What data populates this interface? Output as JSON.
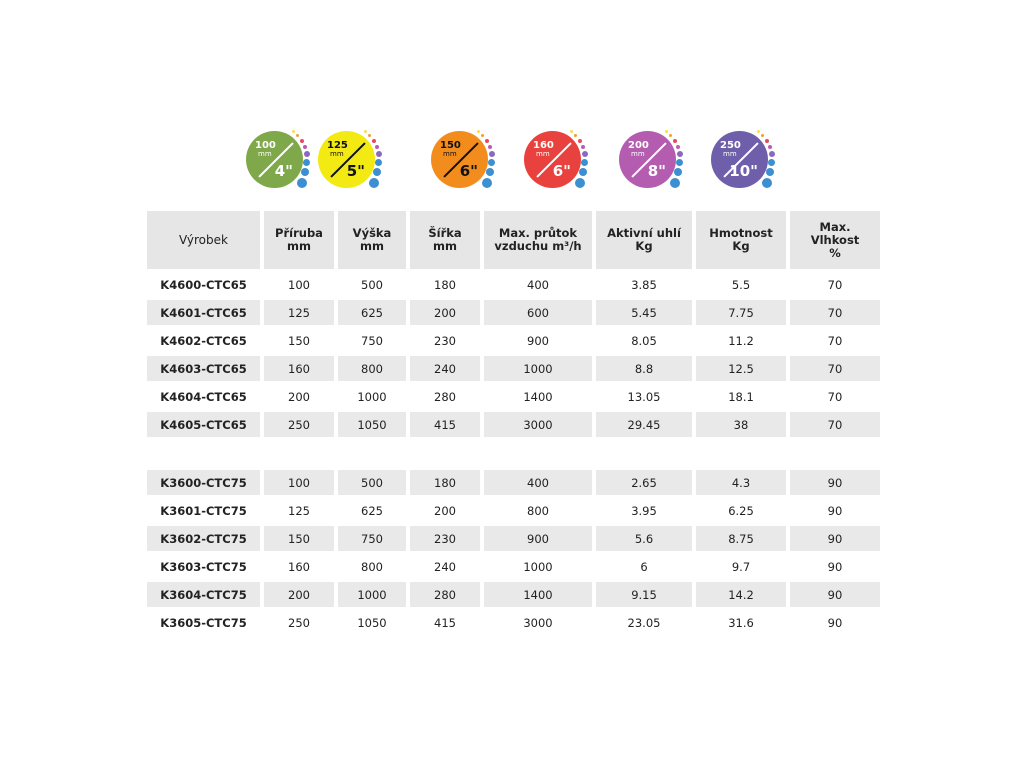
{
  "icons": [
    {
      "mm": "100",
      "unit": "mm",
      "inch": "4\"",
      "color": "#7fa84a",
      "text": "#ffffff"
    },
    {
      "mm": "125",
      "unit": "mm",
      "inch": "5\"",
      "color": "#f2ea12",
      "text": "#111111"
    },
    {
      "mm": "150",
      "unit": "mm",
      "inch": "6\"",
      "color": "#f28c1c",
      "text": "#111111"
    },
    {
      "mm": "160",
      "unit": "mm",
      "inch": "6\"",
      "color": "#e8413e",
      "text": "#ffffff"
    },
    {
      "mm": "200",
      "unit": "mm",
      "inch": "8\"",
      "color": "#b45db0",
      "text": "#ffffff"
    },
    {
      "mm": "250",
      "unit": "mm",
      "inch": "10\"",
      "color": "#6f5fab",
      "text": "#ffffff"
    }
  ],
  "table": {
    "headers": [
      [
        "Výrobek"
      ],
      [
        "Příruba",
        "mm"
      ],
      [
        "Výška",
        "mm"
      ],
      [
        "Šířka",
        "mm"
      ],
      [
        "Max. průtok",
        "vzduchu  m³/h"
      ],
      [
        "Aktivní uhlí",
        "Kg"
      ],
      [
        "Hmotnost",
        "Kg"
      ],
      [
        "Max.",
        "Vlhkost",
        "%"
      ]
    ],
    "group1": [
      [
        "K4600-CTC65",
        "100",
        "500",
        "180",
        "400",
        "3.85",
        "5.5",
        "70"
      ],
      [
        "K4601-CTC65",
        "125",
        "625",
        "200",
        "600",
        "5.45",
        "7.75",
        "70"
      ],
      [
        "K4602-CTC65",
        "150",
        "750",
        "230",
        "900",
        "8.05",
        "11.2",
        "70"
      ],
      [
        "K4603-CTC65",
        "160",
        "800",
        "240",
        "1000",
        "8.8",
        "12.5",
        "70"
      ],
      [
        "K4604-CTC65",
        "200",
        "1000",
        "280",
        "1400",
        "13.05",
        "18.1",
        "70"
      ],
      [
        "K4605-CTC65",
        "250",
        "1050",
        "415",
        "3000",
        "29.45",
        "38",
        "70"
      ]
    ],
    "group2": [
      [
        "K3600-CTC75",
        "100",
        "500",
        "180",
        "400",
        "2.65",
        "4.3",
        "90"
      ],
      [
        "K3601-CTC75",
        "125",
        "625",
        "200",
        "800",
        "3.95",
        "6.25",
        "90"
      ],
      [
        "K3602-CTC75",
        "150",
        "750",
        "230",
        "900",
        "5.6",
        "8.75",
        "90"
      ],
      [
        "K3603-CTC75",
        "160",
        "800",
        "240",
        "1000",
        "6",
        "9.7",
        "90"
      ],
      [
        "K3604-CTC75",
        "200",
        "1000",
        "280",
        "1400",
        "9.15",
        "14.2",
        "90"
      ],
      [
        "K3605-CTC75",
        "250",
        "1050",
        "415",
        "3000",
        "23.05",
        "31.6",
        "90"
      ]
    ]
  }
}
